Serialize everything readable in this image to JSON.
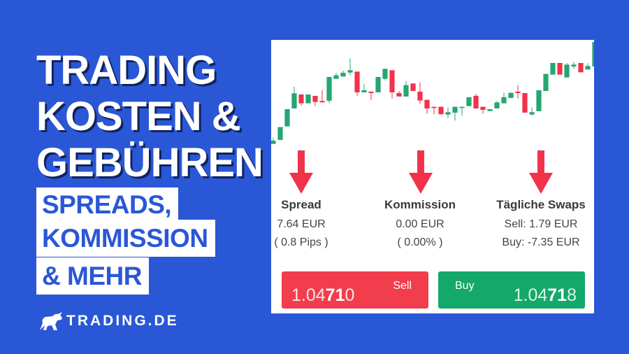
{
  "headline": [
    "TRADING",
    "KOSTEN &",
    "GEBÜHREN"
  ],
  "subtitle": [
    "SPREADS,",
    "KOMMISSION",
    "& MEHR"
  ],
  "logo": {
    "text": "TRADING.DE",
    "icon": "bull-icon"
  },
  "colors": {
    "background": "#2a57d6",
    "up": "#26a671",
    "down": "#f2324a",
    "sell_button": "#f23d4c",
    "buy_button": "#14a86a"
  },
  "cost_columns": [
    {
      "title": "Spread",
      "line1": "7.64 EUR",
      "line2": "( 0.8 Pips )"
    },
    {
      "title": "Kommission",
      "line1": "0.00 EUR",
      "line2": "( 0.00% )"
    },
    {
      "title": "Tägliche Swaps",
      "line1": "Sell: 1.79 EUR",
      "line2": "Buy: -7.35 EUR"
    }
  ],
  "sell": {
    "label": "Sell",
    "price_pre": "1.04",
    "price_bold": "71",
    "price_post": "0"
  },
  "buy": {
    "label": "Buy",
    "price_pre": "1.04",
    "price_bold": "71",
    "price_post": "8"
  },
  "chart_data": {
    "type": "candlestick",
    "candles": [
      [
        5.8,
        8.5,
        5.8,
        7.2
      ],
      [
        7.5,
        13.0,
        7.5,
        13.0
      ],
      [
        13.3,
        20.7,
        13.3,
        20.7
      ],
      [
        21.0,
        30.3,
        21.0,
        27.5
      ],
      [
        27.0,
        27.0,
        22.2,
        23.2
      ],
      [
        23.2,
        27.0,
        23.2,
        27.0
      ],
      [
        26.4,
        26.4,
        22.0,
        23.8
      ],
      [
        24.2,
        28.8,
        23.6,
        23.6
      ],
      [
        24.3,
        34.5,
        23.3,
        34.5
      ],
      [
        33.7,
        36.2,
        33.7,
        35.2
      ],
      [
        34.7,
        37.2,
        34.7,
        36.3
      ],
      [
        36.4,
        42.5,
        35.2,
        37.4
      ],
      [
        36.8,
        36.8,
        26.4,
        27.9
      ],
      [
        27.9,
        31.5,
        27.9,
        28.8
      ],
      [
        28.2,
        28.2,
        24.5,
        27.6
      ],
      [
        27.9,
        34.5,
        27.9,
        34.5
      ],
      [
        33.7,
        38.0,
        33.0,
        38.0
      ],
      [
        37.4,
        37.4,
        25.2,
        27.9
      ],
      [
        27.6,
        28.5,
        26.1,
        26.1
      ],
      [
        26.1,
        32.7,
        26.1,
        31.0
      ],
      [
        31.7,
        31.7,
        28.5,
        28.5
      ],
      [
        28.2,
        32.2,
        23.0,
        24.4
      ],
      [
        24.7,
        24.7,
        18.7,
        21.0
      ],
      [
        21.7,
        21.7,
        18.5,
        21.2
      ],
      [
        21.7,
        21.7,
        18.5,
        18.5
      ],
      [
        18.4,
        21.5,
        17.0,
        19.4
      ],
      [
        19.2,
        21.7,
        15.8,
        21.7
      ],
      [
        21.2,
        21.7,
        18.0,
        21.7
      ],
      [
        22.0,
        25.8,
        22.0,
        25.8
      ],
      [
        26.4,
        27.2,
        21.0,
        21.0
      ],
      [
        21.7,
        21.7,
        18.7,
        20.4
      ],
      [
        19.9,
        20.7,
        19.9,
        20.7
      ],
      [
        21.0,
        24.2,
        21.0,
        23.6
      ],
      [
        23.2,
        27.8,
        23.2,
        25.8
      ],
      [
        25.5,
        27.7,
        25.5,
        27.7
      ],
      [
        28.2,
        31.0,
        25.2,
        27.6
      ],
      [
        27.6,
        27.6,
        19.2,
        19.2
      ],
      [
        18.4,
        21.4,
        18.0,
        19.4
      ],
      [
        19.8,
        28.8,
        19.8,
        28.8
      ],
      [
        28.5,
        35.8,
        28.5,
        35.8
      ],
      [
        35.5,
        40.5,
        35.5,
        40.5
      ],
      [
        40.5,
        40.5,
        35.5,
        35.5
      ],
      [
        34.3,
        40.5,
        34.3,
        39.8
      ],
      [
        39.0,
        41.0,
        38.0,
        39.8
      ],
      [
        40.5,
        40.5,
        36.5,
        36.5
      ],
      [
        37.7,
        40.4,
        37.7,
        39.2
      ],
      [
        39.0,
        49.5,
        39.0,
        49.5
      ]
    ]
  }
}
